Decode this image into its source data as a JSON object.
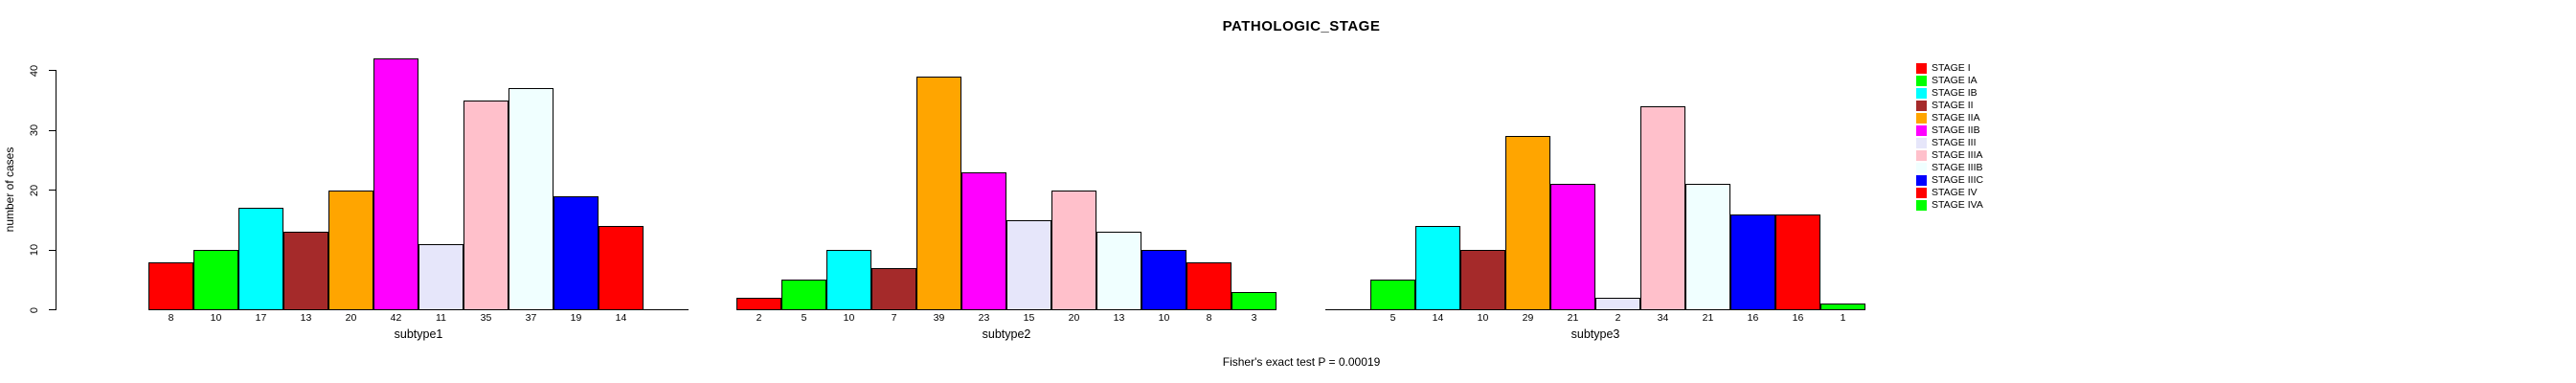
{
  "chart_data": {
    "type": "bar",
    "title": "PATHOLOGIC_STAGE",
    "ylabel": "number of cases",
    "xlabel": "",
    "ylim": [
      0,
      40
    ],
    "yticks": [
      0,
      10,
      20,
      30,
      40
    ],
    "grid": "off",
    "legend_position": "right",
    "annotation": "Fisher's exact test P = 0.00019",
    "categories": [
      "STAGE I",
      "STAGE IA",
      "STAGE IB",
      "STAGE II",
      "STAGE IIA",
      "STAGE IIB",
      "STAGE III",
      "STAGE IIIA",
      "STAGE IIIB",
      "STAGE IIIC",
      "STAGE IV",
      "STAGE IVA"
    ],
    "colors": [
      "#FF0000",
      "#00FF00",
      "#00FFFF",
      "#A52A2A",
      "#FFA500",
      "#FF00FF",
      "#E6E6FA",
      "#FFC0CB",
      "#F0FFFF",
      "#0000FF",
      "#FF0000",
      "#00FF00"
    ],
    "series": [
      {
        "name": "subtype1",
        "values": [
          8,
          10,
          17,
          13,
          20,
          42,
          11,
          35,
          37,
          19,
          14,
          0
        ]
      },
      {
        "name": "subtype2",
        "values": [
          2,
          5,
          10,
          7,
          39,
          23,
          15,
          20,
          13,
          10,
          8,
          3
        ]
      },
      {
        "name": "subtype3",
        "values": [
          0,
          5,
          14,
          10,
          29,
          21,
          2,
          34,
          21,
          16,
          16,
          1
        ]
      }
    ],
    "bar_label_rule": "value shown under each bar; zero-count bars hidden and unlabeled"
  },
  "legend": {
    "items": [
      {
        "label": "STAGE I",
        "color": "#FF0000"
      },
      {
        "label": "STAGE IA",
        "color": "#00FF00"
      },
      {
        "label": "STAGE IB",
        "color": "#00FFFF"
      },
      {
        "label": "STAGE II",
        "color": "#A52A2A"
      },
      {
        "label": "STAGE IIA",
        "color": "#FFA500"
      },
      {
        "label": "STAGE IIB",
        "color": "#FF00FF"
      },
      {
        "label": "STAGE III",
        "color": "#E6E6FA"
      },
      {
        "label": "STAGE IIIA",
        "color": "#FFC0CB"
      },
      {
        "label": "STAGE IIIB",
        "color": "#F0FFFF"
      },
      {
        "label": "STAGE IIIC",
        "color": "#0000FF"
      },
      {
        "label": "STAGE IV",
        "color": "#FF0000"
      },
      {
        "label": "STAGE IVA",
        "color": "#00FF00"
      }
    ]
  }
}
